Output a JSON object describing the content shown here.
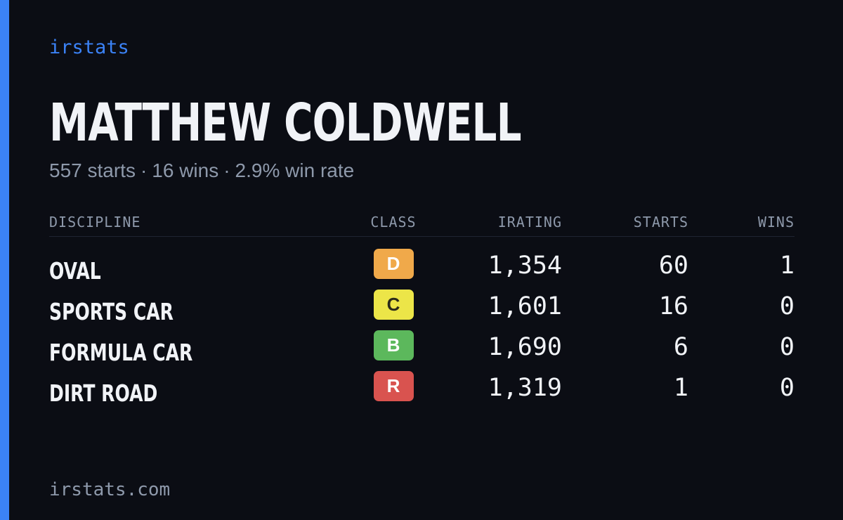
{
  "brand": "irstats",
  "player": {
    "name": "MATTHEW COLDWELL",
    "summary": {
      "starts": "557 starts",
      "wins": "16 wins",
      "win_rate": "2.9% win rate",
      "separator": "·"
    }
  },
  "table": {
    "headers": {
      "discipline": "DISCIPLINE",
      "class": "CLASS",
      "irating": "IRATING",
      "starts": "STARTS",
      "wins": "WINS"
    },
    "rows": [
      {
        "discipline": "OVAL",
        "class": "D",
        "class_color": "#f0a94a",
        "class_text_color": "#ffffff",
        "irating": "1,354",
        "starts": "60",
        "wins": "1"
      },
      {
        "discipline": "SPORTS CAR",
        "class": "C",
        "class_color": "#ece548",
        "class_text_color": "#2a2a1a",
        "irating": "1,601",
        "starts": "16",
        "wins": "0"
      },
      {
        "discipline": "FORMULA CAR",
        "class": "B",
        "class_color": "#5cb85c",
        "class_text_color": "#ffffff",
        "irating": "1,690",
        "starts": "6",
        "wins": "0"
      },
      {
        "discipline": "DIRT ROAD",
        "class": "R",
        "class_color": "#d9534f",
        "class_text_color": "#ffffff",
        "irating": "1,319",
        "starts": "1",
        "wins": "0"
      }
    ]
  },
  "footer": {
    "domain": "irstats.com"
  },
  "colors": {
    "background": "#0b0d14",
    "accent": "#3b82f6",
    "text_primary": "#f1f3f7",
    "text_muted": "#8e99ab"
  }
}
